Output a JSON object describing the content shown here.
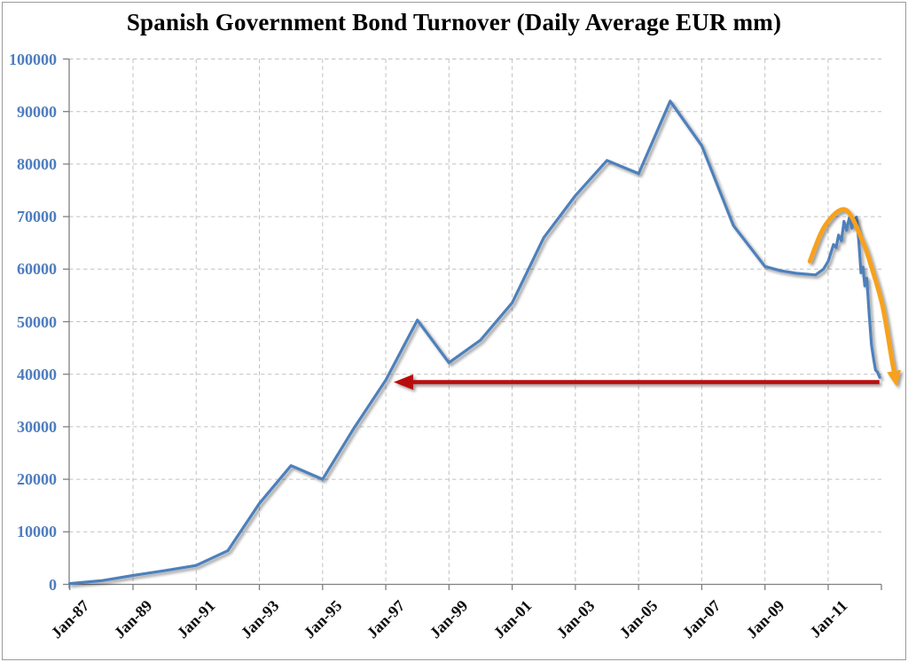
{
  "chart_title": "Spanish Government Bond Turnover (Daily Average EUR mm)",
  "colors": {
    "background": "#FFFFFF",
    "outer_border": "#9A9A9A",
    "series_blue": "#4E80BC",
    "y_label_blue": "#4E7DBE",
    "x_label_black": "#0D0D0D",
    "gridline_gray": "#C1C1C1",
    "axis_gray": "#808080",
    "red_arrow": "#B90E10",
    "orange_arrow": "#F7A11E"
  },
  "chart_data": {
    "type": "line",
    "title": "Spanish Government Bond Turnover (Daily Average EUR mm)",
    "legend": "none",
    "grid": "dashed",
    "x_axis": {
      "labels": [
        "Jan-87",
        "Jan-89",
        "Jan-91",
        "Jan-93",
        "Jan-95",
        "Jan-97",
        "Jan-99",
        "Jan-01",
        "Jan-03",
        "Jan-05",
        "Jan-07",
        "Jan-09",
        "Jan-11"
      ],
      "label_years": [
        1987,
        1989,
        1991,
        1993,
        1995,
        1997,
        1999,
        2001,
        2003,
        2005,
        2007,
        2009,
        2011
      ],
      "gridline_years": [
        1989,
        1991,
        1993,
        1995,
        1997,
        1999,
        2001,
        2003,
        2005,
        2007,
        2009,
        2011
      ],
      "range_years": [
        1987,
        2012.75
      ]
    },
    "y_axis": {
      "tick_values": [
        0,
        10000,
        20000,
        30000,
        40000,
        50000,
        60000,
        70000,
        80000,
        90000,
        100000
      ],
      "tick_labels": [
        "0",
        "10000",
        "20000",
        "30000",
        "40000",
        "50000",
        "60000",
        "70000",
        "80000",
        "90000",
        "100000"
      ],
      "range": [
        0,
        100000
      ]
    },
    "series": [
      {
        "name": "Spanish government bond turnover, daily average (EUR mm)",
        "color": "#4E80BC",
        "points": [
          [
            1987,
            150
          ],
          [
            1988,
            700
          ],
          [
            1989,
            1700
          ],
          [
            1990,
            2600
          ],
          [
            1991,
            3600
          ],
          [
            1992,
            6400
          ],
          [
            1993,
            15400
          ],
          [
            1994,
            22600
          ],
          [
            1995,
            20000
          ],
          [
            1996,
            29800
          ],
          [
            1997,
            38900
          ],
          [
            1998,
            50300
          ],
          [
            1999,
            42200
          ],
          [
            2000,
            46500
          ],
          [
            2001,
            53600
          ],
          [
            2002,
            66000
          ],
          [
            2003,
            74000
          ],
          [
            2004,
            80700
          ],
          [
            2005,
            78200
          ],
          [
            2006,
            92000
          ],
          [
            2007,
            83500
          ],
          [
            2008,
            68300
          ],
          [
            2009,
            60500
          ],
          [
            2009.5,
            59700
          ],
          [
            2010,
            59200
          ],
          [
            2010.6,
            58900
          ],
          [
            2010.85,
            60000
          ],
          [
            2011.0,
            61500
          ],
          [
            2011.08,
            63000
          ],
          [
            2011.17,
            64700
          ],
          [
            2011.25,
            64100
          ],
          [
            2011.33,
            66500
          ],
          [
            2011.42,
            65400
          ],
          [
            2011.5,
            69100
          ],
          [
            2011.58,
            67400
          ],
          [
            2011.67,
            69800
          ],
          [
            2011.75,
            67800
          ],
          [
            2011.83,
            69500
          ],
          [
            2011.9,
            69900
          ],
          [
            2011.97,
            65300
          ],
          [
            2012.04,
            59300
          ],
          [
            2012.1,
            60400
          ],
          [
            2012.16,
            56800
          ],
          [
            2012.22,
            58300
          ],
          [
            2012.3,
            51200
          ],
          [
            2012.37,
            45600
          ],
          [
            2012.44,
            42800
          ],
          [
            2012.5,
            40800
          ],
          [
            2012.56,
            40400
          ],
          [
            2012.63,
            39400
          ]
        ]
      }
    ],
    "annotations": {
      "red_arrow": {
        "shape": "horizontal-arrow-left",
        "meaning": "turnover back at 1997 levels",
        "value": 38500,
        "from_year": 2012.62,
        "tip_year": 1997.25,
        "color": "#B90E10"
      },
      "orange_arrow": {
        "shape": "curved-arrow-down",
        "meaning": "collapse from the 2011 peak",
        "color": "#F7A11E",
        "points": [
          [
            2010.42,
            61500
          ],
          [
            2010.9,
            68300
          ],
          [
            2011.55,
            71300
          ],
          [
            2012.09,
            65300
          ],
          [
            2012.35,
            60800
          ],
          [
            2012.72,
            53000
          ],
          [
            2013.02,
            42600
          ],
          [
            2013.14,
            38600
          ]
        ]
      }
    }
  }
}
